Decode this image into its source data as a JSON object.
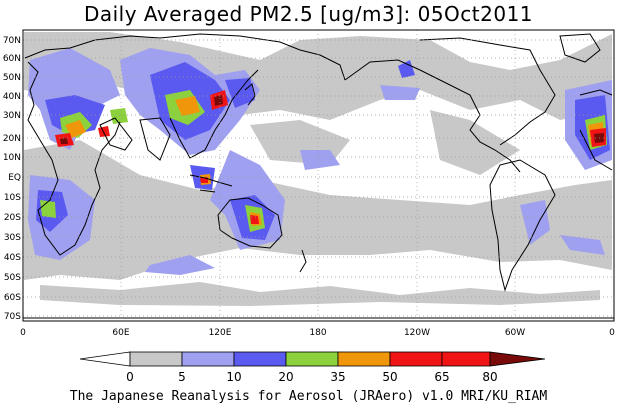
{
  "title": "Daily Averaged PM2.5 [ug/m3]: 05Oct2011",
  "footer": "The Japanese Reanalysis for Aerosol (JRAero) v1.0 MRI/KU_RIAM",
  "map": {
    "lat_labels": [
      "70N",
      "60N",
      "50N",
      "40N",
      "30N",
      "20N",
      "10N",
      "EQ",
      "10S",
      "20S",
      "30S",
      "40S",
      "50S",
      "60S",
      "70S"
    ],
    "lon_labels": [
      "0",
      "60E",
      "120E",
      "180",
      "120W",
      "60W",
      "0"
    ]
  },
  "colorbar": {
    "thresholds": [
      "0",
      "5",
      "10",
      "20",
      "35",
      "50",
      "65",
      "80"
    ],
    "colors": [
      "#ffffff",
      "#c8c8c8",
      "#a0a0f0",
      "#5a5af0",
      "#8cd23c",
      "#f0960a",
      "#f01414",
      "#780a0a"
    ]
  },
  "colors": {
    "land_outline": "#000000",
    "grid": "#999999",
    "frame": "#000000"
  }
}
